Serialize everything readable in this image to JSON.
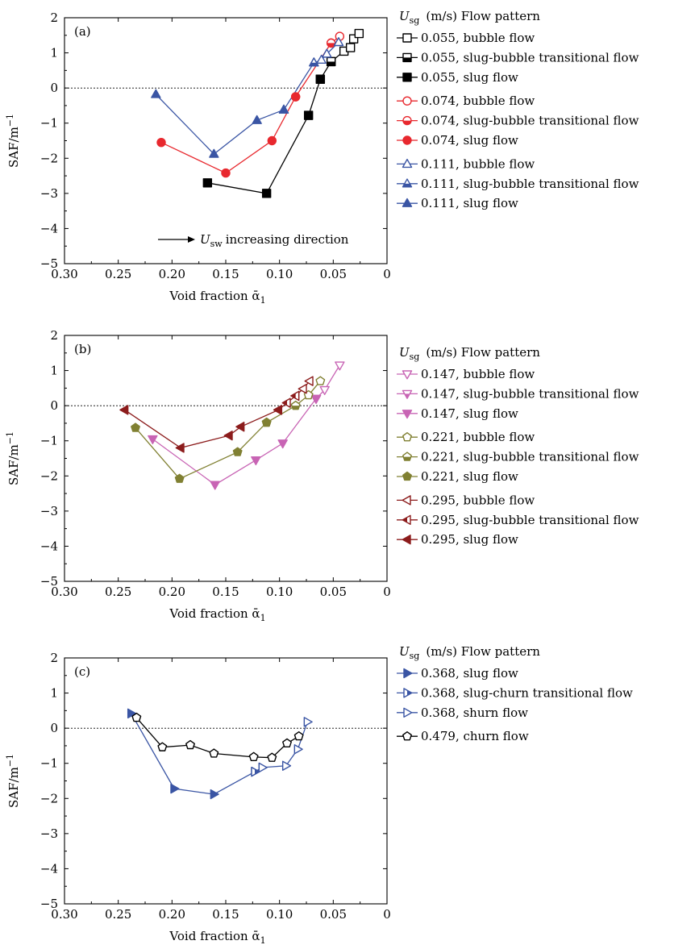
{
  "chart_data": [
    {
      "panel": "(a)",
      "type": "scatter",
      "xlabel": "Void fraction ᾱ",
      "xlabel_sub": "1",
      "ylabel": "SAF/m",
      "ylabel_sup": "−1",
      "xlim": [
        0.3,
        0
      ],
      "ylim": [
        -5,
        2
      ],
      "xticks": [
        "0.30",
        "0.25",
        "0.20",
        "0.15",
        "0.10",
        "0.05",
        "0"
      ],
      "yticks": [
        "−5",
        "−4",
        "−3",
        "−2",
        "−1",
        "0",
        "1",
        "2"
      ],
      "reference_line_y": 0,
      "legend_header": {
        "symbol": "U",
        "sub": "sg",
        "text": "(m/s) Flow pattern"
      },
      "annotation": {
        "symbol": "U",
        "sub": "sw",
        "text": "increasing direction",
        "arrow": "right"
      },
      "series": [
        {
          "name": "0.055, bubble flow",
          "color": "#000000",
          "marker": "square",
          "fill": "open",
          "points": [
            [
              0.052,
              0.75
            ],
            [
              0.04,
              1.05
            ],
            [
              0.034,
              1.15
            ],
            [
              0.031,
              1.4
            ],
            [
              0.026,
              1.55
            ]
          ]
        },
        {
          "name": "0.055, slug-bubble transitional flow",
          "color": "#000000",
          "marker": "square",
          "fill": "half",
          "points": [
            [
              0.062,
              0.25
            ],
            [
              0.052,
              0.75
            ]
          ]
        },
        {
          "name": "0.055, slug flow",
          "color": "#000000",
          "marker": "square",
          "fill": "full",
          "points": [
            [
              0.167,
              -2.7
            ],
            [
              0.112,
              -3.0
            ],
            [
              0.073,
              -0.78
            ],
            [
              0.062,
              0.25
            ]
          ]
        },
        {
          "name": "0.074, bubble flow",
          "color": "#e8282e",
          "marker": "circle",
          "fill": "open",
          "points": [
            [
              0.052,
              1.28
            ],
            [
              0.044,
              1.47
            ]
          ]
        },
        {
          "name": "0.074, slug-bubble transitional flow",
          "color": "#e8282e",
          "marker": "circle",
          "fill": "half",
          "points": [
            [
              0.085,
              -0.25
            ],
            [
              0.052,
              1.28
            ]
          ]
        },
        {
          "name": "0.074, slug flow",
          "color": "#e8282e",
          "marker": "circle",
          "fill": "full",
          "points": [
            [
              0.21,
              -1.55
            ],
            [
              0.15,
              -2.42
            ],
            [
              0.107,
              -1.5
            ],
            [
              0.085,
              -0.25
            ]
          ]
        },
        {
          "name": "0.111, bubble flow",
          "color": "#3a55a4",
          "marker": "triangle-up",
          "fill": "open",
          "points": [
            [
              0.068,
              0.72
            ],
            [
              0.061,
              0.8
            ],
            [
              0.056,
              0.97
            ],
            [
              0.045,
              1.3
            ]
          ]
        },
        {
          "name": "0.111, slug-bubble transitional flow",
          "color": "#3a55a4",
          "marker": "triangle-up",
          "fill": "half",
          "points": [
            [
              0.096,
              -0.62
            ],
            [
              0.068,
              0.72
            ]
          ]
        },
        {
          "name": "0.111, slug flow",
          "color": "#3a55a4",
          "marker": "triangle-up",
          "fill": "full",
          "points": [
            [
              0.215,
              -0.18
            ],
            [
              0.161,
              -1.88
            ],
            [
              0.121,
              -0.92
            ],
            [
              0.096,
              -0.62
            ]
          ]
        }
      ]
    },
    {
      "panel": "(b)",
      "type": "scatter",
      "xlabel": "Void fraction ᾱ",
      "xlabel_sub": "1",
      "ylabel": "SAF/m",
      "ylabel_sup": "−1",
      "xlim": [
        0.3,
        0
      ],
      "ylim": [
        -5,
        2
      ],
      "xticks": [
        "0.30",
        "0.25",
        "0.20",
        "0.15",
        "0.10",
        "0.05",
        "0"
      ],
      "yticks": [
        "−5",
        "−4",
        "−3",
        "−2",
        "−1",
        "0",
        "1",
        "2"
      ],
      "reference_line_y": 0,
      "legend_header": {
        "symbol": "U",
        "sub": "sg",
        "text": "(m/s) Flow pattern"
      },
      "series": [
        {
          "name": "0.147, bubble flow",
          "color": "#c864b4",
          "marker": "triangle-down",
          "fill": "open",
          "points": [
            [
              0.066,
              0.2
            ],
            [
              0.058,
              0.45
            ],
            [
              0.044,
              1.15
            ]
          ]
        },
        {
          "name": "0.147, slug-bubble transitional flow",
          "color": "#c864b4",
          "marker": "triangle-down",
          "fill": "half",
          "points": [
            [
              0.066,
              0.2
            ]
          ]
        },
        {
          "name": "0.147, slug flow",
          "color": "#c864b4",
          "marker": "triangle-down",
          "fill": "full",
          "points": [
            [
              0.218,
              -0.95
            ],
            [
              0.16,
              -2.25
            ],
            [
              0.122,
              -1.55
            ],
            [
              0.097,
              -1.07
            ],
            [
              0.066,
              0.2
            ]
          ]
        },
        {
          "name": "0.221, bubble flow",
          "color": "#808032",
          "marker": "pentagon",
          "fill": "open",
          "points": [
            [
              0.085,
              0.0
            ],
            [
              0.073,
              0.3
            ],
            [
              0.062,
              0.7
            ]
          ]
        },
        {
          "name": "0.221, slug-bubble transitional flow",
          "color": "#808032",
          "marker": "pentagon",
          "fill": "half",
          "points": [
            [
              0.112,
              -0.48
            ],
            [
              0.085,
              0.0
            ]
          ]
        },
        {
          "name": "0.221, slug flow",
          "color": "#808032",
          "marker": "pentagon",
          "fill": "full",
          "points": [
            [
              0.234,
              -0.63
            ],
            [
              0.193,
              -2.08
            ],
            [
              0.139,
              -1.32
            ],
            [
              0.112,
              -0.48
            ]
          ]
        },
        {
          "name": "0.295, bubble flow",
          "color": "#8c1c1c",
          "marker": "triangle-left",
          "fill": "open",
          "points": [
            [
              0.085,
              0.28
            ],
            [
              0.078,
              0.48
            ],
            [
              0.072,
              0.7
            ]
          ]
        },
        {
          "name": "0.295, slug-bubble transitional flow",
          "color": "#8c1c1c",
          "marker": "triangle-left",
          "fill": "half",
          "points": [
            [
              0.101,
              -0.12
            ],
            [
              0.093,
              0.08
            ],
            [
              0.085,
              0.28
            ]
          ]
        },
        {
          "name": "0.295, slug flow",
          "color": "#8c1c1c",
          "marker": "triangle-left",
          "fill": "full",
          "points": [
            [
              0.244,
              -0.12
            ],
            [
              0.192,
              -1.2
            ],
            [
              0.147,
              -0.85
            ],
            [
              0.136,
              -0.6
            ],
            [
              0.101,
              -0.12
            ]
          ]
        }
      ]
    },
    {
      "panel": "(c)",
      "type": "scatter",
      "xlabel": "Void fraction ᾱ",
      "xlabel_sub": "1",
      "ylabel": "SAF/m",
      "ylabel_sup": "−1",
      "xlim": [
        0.3,
        0
      ],
      "ylim": [
        -5,
        2
      ],
      "xticks": [
        "0.30",
        "0.25",
        "0.20",
        "0.15",
        "0.10",
        "0.05",
        "0"
      ],
      "yticks": [
        "−5",
        "−4",
        "−3",
        "−2",
        "−1",
        "0",
        "1",
        "2"
      ],
      "reference_line_y": 0,
      "legend_header": {
        "symbol": "U",
        "sub": "sg",
        "text": "(m/s) Flow pattern"
      },
      "series": [
        {
          "name": "0.368, slug flow",
          "color": "#3a55a4",
          "marker": "triangle-right",
          "fill": "full",
          "points": [
            [
              0.238,
              0.42
            ],
            [
              0.198,
              -1.72
            ],
            [
              0.161,
              -1.88
            ],
            [
              0.123,
              -1.24
            ]
          ]
        },
        {
          "name": "0.368, slug-churn transitional flow",
          "color": "#3a55a4",
          "marker": "triangle-right",
          "fill": "half",
          "points": [
            [
              0.123,
              -1.24
            ],
            [
              0.116,
              -1.12
            ]
          ]
        },
        {
          "name": "0.368, shurn flow",
          "color": "#3a55a4",
          "marker": "triangle-right",
          "fill": "open",
          "points": [
            [
              0.116,
              -1.12
            ],
            [
              0.094,
              -1.07
            ],
            [
              0.083,
              -0.6
            ],
            [
              0.074,
              0.18
            ]
          ]
        },
        {
          "name": "0.479, churn flow",
          "color": "#000000",
          "marker": "pentagon",
          "fill": "open",
          "points": [
            [
              0.233,
              0.3
            ],
            [
              0.209,
              -0.54
            ],
            [
              0.183,
              -0.48
            ],
            [
              0.161,
              -0.72
            ],
            [
              0.124,
              -0.82
            ],
            [
              0.107,
              -0.84
            ],
            [
              0.093,
              -0.43
            ],
            [
              0.082,
              -0.23
            ]
          ]
        }
      ]
    }
  ]
}
